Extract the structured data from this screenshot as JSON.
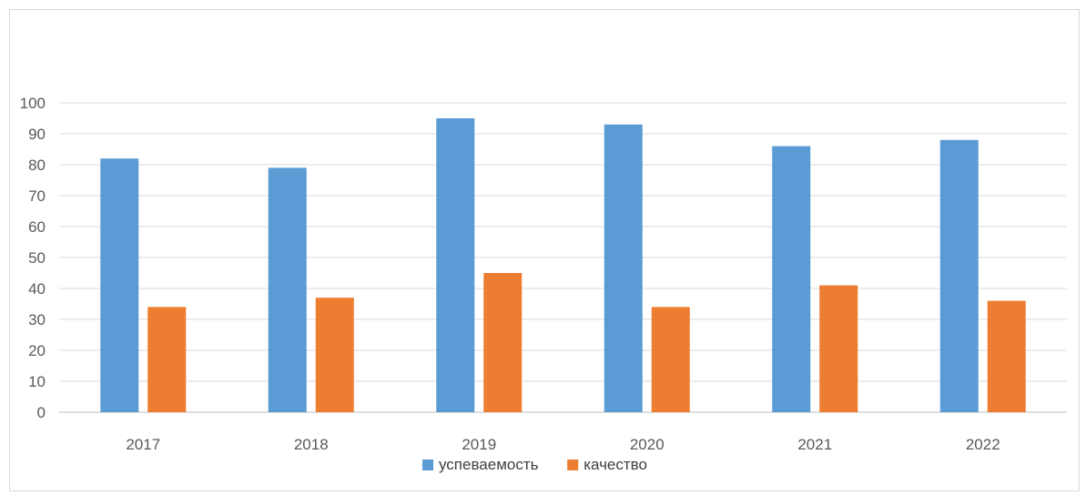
{
  "chart_data": {
    "type": "bar",
    "title_fragment": "",
    "categories": [
      "2017",
      "2018",
      "2019",
      "2020",
      "2021",
      "2022"
    ],
    "series": [
      {
        "name": "успеваемость",
        "color": "#5b9bd5",
        "values": [
          82,
          79,
          95,
          93,
          86,
          88
        ]
      },
      {
        "name": "качество",
        "color": "#ed7d31",
        "values": [
          34,
          37,
          45,
          34,
          41,
          36
        ]
      }
    ],
    "ylim": [
      0,
      100
    ],
    "yticks": [
      0,
      10,
      20,
      30,
      40,
      50,
      60,
      70,
      80,
      90,
      100
    ],
    "grid": true,
    "legend_position": "bottom"
  }
}
